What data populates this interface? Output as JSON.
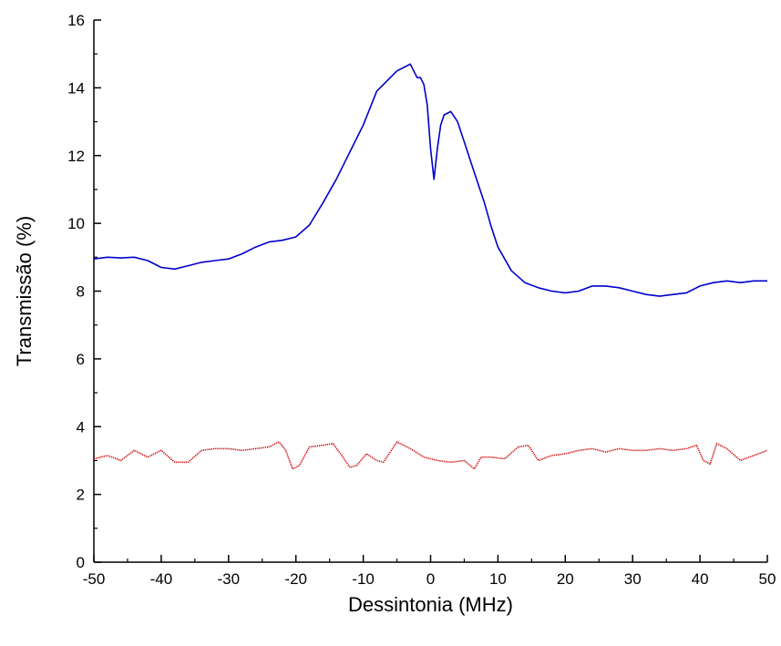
{
  "chart_data": {
    "type": "line",
    "xlabel": "Dessintonia (MHz)",
    "ylabel": "Transmissão (%)",
    "xlim": [
      -50,
      50
    ],
    "ylim": [
      0,
      16
    ],
    "xticks": [
      -50,
      -40,
      -30,
      -20,
      -10,
      0,
      10,
      20,
      30,
      40,
      50
    ],
    "yticks": [
      0,
      2,
      4,
      6,
      8,
      10,
      12,
      14,
      16
    ],
    "xtick_labels": [
      "-50",
      "-40",
      "-30",
      "-20",
      "-10",
      "0",
      "10",
      "20",
      "30",
      "40",
      "50"
    ],
    "ytick_labels": [
      "0",
      "2",
      "4",
      "6",
      "8",
      "10",
      "12",
      "14",
      "16"
    ],
    "grid": false,
    "legend": "none",
    "series": [
      {
        "color": "#0000cc",
        "x": [
          -50,
          -48,
          -46,
          -44,
          -42,
          -40,
          -38,
          -36,
          -34,
          -32,
          -30,
          -28,
          -26,
          -24,
          -22,
          -20,
          -18,
          -16,
          -14,
          -12,
          -10,
          -8,
          -7,
          -6,
          -5,
          -4,
          -3,
          -2.5,
          -2,
          -1.5,
          -1,
          -0.5,
          0,
          0.5,
          1,
          1.5,
          2,
          3,
          4,
          5,
          6,
          7,
          8,
          9,
          10,
          12,
          14,
          16,
          18,
          20,
          22,
          24,
          26,
          28,
          30,
          32,
          34,
          36,
          38,
          40,
          42,
          44,
          46,
          48,
          50
        ],
        "y": [
          8.95,
          9.0,
          8.98,
          9.0,
          8.9,
          8.7,
          8.65,
          8.75,
          8.85,
          8.9,
          8.95,
          9.1,
          9.3,
          9.45,
          9.5,
          9.6,
          9.95,
          10.6,
          11.3,
          12.1,
          12.9,
          13.9,
          14.1,
          14.3,
          14.5,
          14.6,
          14.7,
          14.5,
          14.3,
          14.3,
          14.1,
          13.5,
          12.2,
          11.3,
          12.2,
          12.9,
          13.2,
          13.3,
          13.0,
          12.4,
          11.8,
          11.2,
          10.6,
          9.9,
          9.3,
          8.6,
          8.25,
          8.1,
          8.0,
          7.95,
          8.0,
          8.15,
          8.15,
          8.1,
          8.0,
          7.9,
          7.85,
          7.9,
          7.95,
          8.15,
          8.25,
          8.3,
          8.25,
          8.3,
          8.3
        ]
      },
      {
        "color": "#cc0000",
        "x": [
          -50,
          -48,
          -46,
          -44,
          -42,
          -40,
          -38,
          -36,
          -34,
          -32,
          -30,
          -28,
          -26,
          -24,
          -22.5,
          -21.5,
          -20.5,
          -19.5,
          -18,
          -16,
          -14.5,
          -13,
          -12,
          -11,
          -9.5,
          -8,
          -7,
          -5,
          -3,
          -1,
          1,
          3,
          5,
          6.5,
          7.5,
          9,
          11,
          13,
          14.5,
          16,
          18,
          20,
          22,
          24,
          26,
          28,
          30,
          32,
          34,
          36,
          38,
          39.5,
          40.5,
          41.5,
          42.5,
          44,
          46,
          48,
          50
        ],
        "y": [
          3.05,
          3.15,
          3.0,
          3.3,
          3.1,
          3.3,
          2.95,
          2.95,
          3.3,
          3.35,
          3.35,
          3.3,
          3.35,
          3.4,
          3.55,
          3.3,
          2.75,
          2.85,
          3.4,
          3.45,
          3.5,
          3.1,
          2.8,
          2.85,
          3.2,
          3.0,
          2.95,
          3.55,
          3.35,
          3.1,
          3.0,
          2.95,
          3.0,
          2.75,
          3.1,
          3.1,
          3.05,
          3.4,
          3.45,
          3.0,
          3.15,
          3.2,
          3.3,
          3.35,
          3.25,
          3.35,
          3.3,
          3.3,
          3.35,
          3.3,
          3.35,
          3.45,
          3.0,
          2.9,
          3.5,
          3.35,
          3.0,
          3.15,
          3.3
        ]
      }
    ]
  }
}
